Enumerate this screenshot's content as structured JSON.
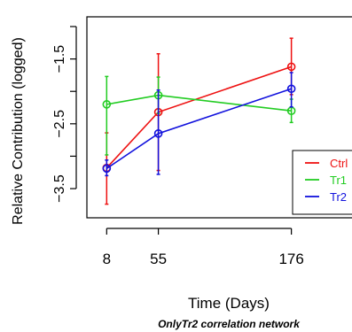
{
  "chart_data": {
    "type": "line",
    "title": "",
    "subtitle": "OnlyTr2 correlation network",
    "xlabel": "Time (Days)",
    "ylabel": "Relative Contribution (logged)",
    "x": [
      8,
      55,
      176
    ],
    "x_tick_labels": [
      "8",
      "55",
      "176"
    ],
    "xlim": [
      -10,
      240
    ],
    "y_ticks": [
      -3.5,
      -3.0,
      -2.5,
      -2.0,
      -1.5,
      -1.0
    ],
    "y_tick_labels": [
      "−3.5",
      "",
      "−2.5",
      "",
      "−1.5",
      ""
    ],
    "ylim": [
      -3.95,
      -0.85
    ],
    "grid": false,
    "legend_position": "right",
    "series": [
      {
        "name": "Ctrl",
        "color": "#ee1111",
        "values": [
          -3.18,
          -2.32,
          -1.62
        ],
        "err_low": [
          -3.74,
          -3.22,
          -2.05
        ],
        "err_high": [
          -2.64,
          -1.42,
          -1.18
        ]
      },
      {
        "name": "Tr1",
        "color": "#22cc22",
        "values": [
          -2.2,
          -2.06,
          -2.3
        ],
        "err_low": [
          -2.98,
          -2.34,
          -2.48
        ],
        "err_high": [
          -1.77,
          -1.78,
          -2.12
        ]
      },
      {
        "name": "Tr2",
        "color": "#1111dd",
        "values": [
          -3.19,
          -2.65,
          -1.96
        ],
        "err_low": [
          -3.3,
          -3.28,
          -2.24
        ],
        "err_high": [
          -3.06,
          -1.98,
          -1.71
        ]
      }
    ]
  }
}
